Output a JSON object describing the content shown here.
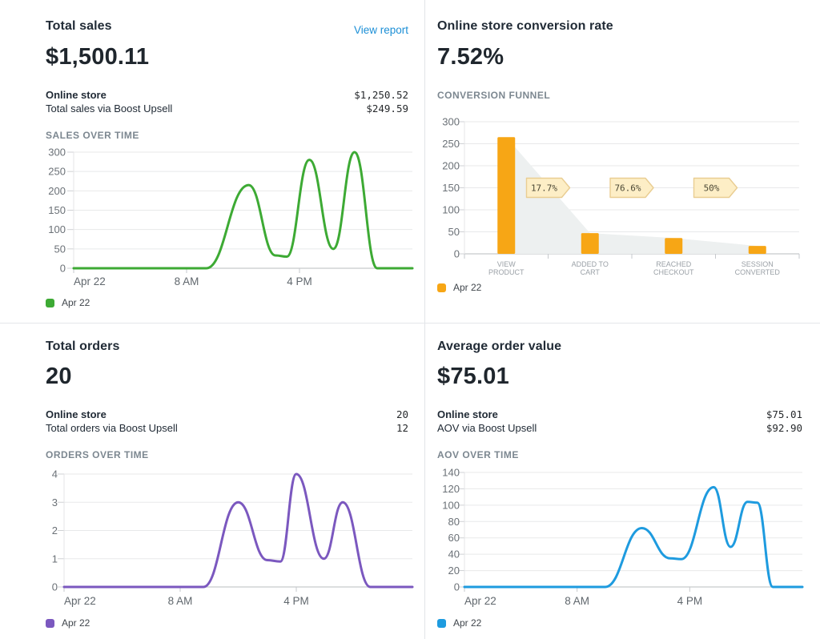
{
  "panels": {
    "total_sales": {
      "title": "Total sales",
      "link": "View report",
      "value": "$1,500.11",
      "rows": [
        {
          "label": "Online store",
          "value": "$1,250.52"
        },
        {
          "label": "Total sales via Boost Upsell",
          "value": "$249.59"
        }
      ],
      "section": "SALES OVER TIME"
    },
    "conversion_rate": {
      "title": "Online store conversion rate",
      "value": "7.52%",
      "section": "CONVERSION FUNNEL"
    },
    "total_orders": {
      "title": "Total orders",
      "value": "20",
      "rows": [
        {
          "label": "Online store",
          "value": "20"
        },
        {
          "label": "Total orders via Boost Upsell",
          "value": "12"
        }
      ],
      "section": "ORDERS OVER TIME"
    },
    "average_order_value": {
      "title": "Average order value",
      "value": "$75.01",
      "rows": [
        {
          "label": "Online store",
          "value": "$75.01"
        },
        {
          "label": "AOV via Boost Upsell",
          "value": "$92.90"
        }
      ],
      "section": "AOV OVER TIME"
    }
  },
  "colors": {
    "sales_line": "#3daa34",
    "funnel_bar": "#f7a615",
    "orders_line": "#7b58bf",
    "aov_line": "#1e9bdf",
    "link": "#1c8fd6",
    "badge_bg": "#fdeec6",
    "badge_border": "#e9cd92",
    "funnel_area": "#edf0f0"
  },
  "chart_data": [
    {
      "id": "sales_over_time",
      "type": "line",
      "title": "SALES OVER TIME",
      "series_name": "Apr 22",
      "color": "#3daa34",
      "x_axis": {
        "unit": "hour_of_day",
        "range": [
          0,
          24
        ],
        "ticks": [
          {
            "pos": 0,
            "label": "Apr 22"
          },
          {
            "pos": 8,
            "label": "8 AM"
          },
          {
            "pos": 16,
            "label": "4 PM"
          }
        ]
      },
      "y_axis": {
        "range": [
          0,
          300
        ],
        "ticks": [
          0,
          50,
          100,
          150,
          200,
          250,
          300
        ]
      },
      "points": [
        [
          0,
          0
        ],
        [
          9.4,
          0
        ],
        [
          12.4,
          215
        ],
        [
          14.3,
          33
        ],
        [
          15.1,
          30
        ],
        [
          16.7,
          280
        ],
        [
          18.4,
          50
        ],
        [
          19.9,
          300
        ],
        [
          21.5,
          0
        ],
        [
          24,
          0
        ]
      ],
      "legend": "Apr 22"
    },
    {
      "id": "conversion_funnel",
      "type": "bar",
      "title": "CONVERSION FUNNEL",
      "series_name": "Apr 22",
      "color": "#f7a615",
      "categories": [
        "VIEW PRODUCT",
        "ADDED TO CART",
        "REACHED CHECKOUT",
        "SESSION CONVERTED"
      ],
      "values": [
        265,
        47,
        36,
        18
      ],
      "conversion_rates": [
        "17.7%",
        "76.6%",
        "50%"
      ],
      "y_axis": {
        "range": [
          0,
          300
        ],
        "ticks": [
          0,
          50,
          100,
          150,
          200,
          250,
          300
        ]
      },
      "legend": "Apr 22"
    },
    {
      "id": "orders_over_time",
      "type": "line",
      "title": "ORDERS OVER TIME",
      "series_name": "Apr 22",
      "color": "#7b58bf",
      "x_axis": {
        "unit": "hour_of_day",
        "range": [
          0,
          24
        ],
        "ticks": [
          {
            "pos": 0,
            "label": "Apr 22"
          },
          {
            "pos": 8,
            "label": "8 AM"
          },
          {
            "pos": 16,
            "label": "4 PM"
          }
        ]
      },
      "y_axis": {
        "range": [
          0,
          4
        ],
        "ticks": [
          0,
          1,
          2,
          3,
          4
        ]
      },
      "points": [
        [
          0,
          0
        ],
        [
          9.6,
          0
        ],
        [
          12.0,
          3
        ],
        [
          14.0,
          0.95
        ],
        [
          14.9,
          0.9
        ],
        [
          16.0,
          4
        ],
        [
          17.9,
          1
        ],
        [
          19.2,
          3
        ],
        [
          21.1,
          0
        ],
        [
          24,
          0
        ]
      ],
      "legend": "Apr 22"
    },
    {
      "id": "aov_over_time",
      "type": "line",
      "title": "AOV OVER TIME",
      "series_name": "Apr 22",
      "color": "#1e9bdf",
      "x_axis": {
        "unit": "hour_of_day",
        "range": [
          0,
          24
        ],
        "ticks": [
          {
            "pos": 0,
            "label": "Apr 22"
          },
          {
            "pos": 8,
            "label": "8 AM"
          },
          {
            "pos": 16,
            "label": "4 PM"
          }
        ]
      },
      "y_axis": {
        "range": [
          0,
          140
        ],
        "ticks": [
          0,
          20,
          40,
          60,
          80,
          100,
          120,
          140
        ]
      },
      "points": [
        [
          0,
          0
        ],
        [
          10.0,
          0
        ],
        [
          12.6,
          72
        ],
        [
          14.6,
          35
        ],
        [
          15.4,
          34
        ],
        [
          17.7,
          122
        ],
        [
          18.9,
          49
        ],
        [
          20.1,
          104
        ],
        [
          20.8,
          103
        ],
        [
          21.9,
          0
        ],
        [
          24,
          0
        ]
      ],
      "legend": "Apr 22"
    }
  ]
}
